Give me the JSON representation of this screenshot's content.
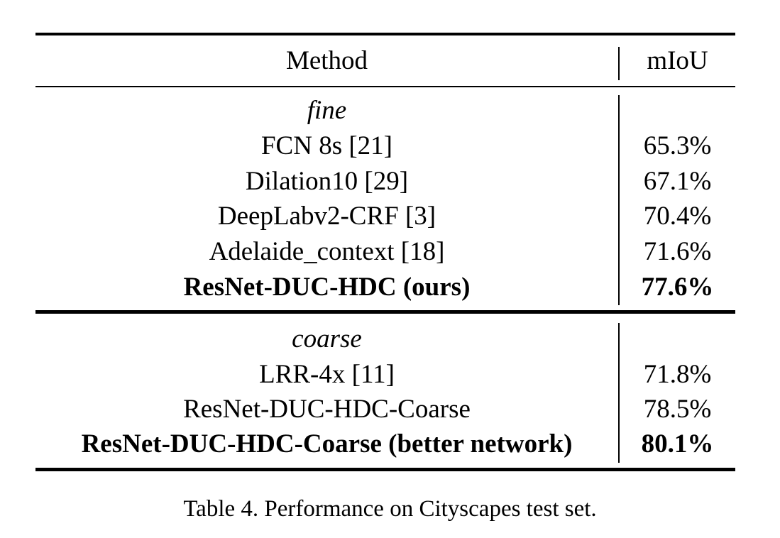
{
  "table": {
    "headers": {
      "method": "Method",
      "miou": "mIoU"
    },
    "sections": [
      {
        "label": "fine",
        "rows": [
          {
            "method": "FCN 8s [21]",
            "miou": "65.3%",
            "bold": false
          },
          {
            "method": "Dilation10 [29]",
            "miou": "67.1%",
            "bold": false
          },
          {
            "method": "DeepLabv2-CRF [3]",
            "miou": "70.4%",
            "bold": false
          },
          {
            "method": "Adelaide_context [18]",
            "miou": "71.6%",
            "bold": false
          },
          {
            "method": "ResNet-DUC-HDC (ours)",
            "miou": "77.6%",
            "bold": true
          }
        ]
      },
      {
        "label": "coarse",
        "rows": [
          {
            "method": "LRR-4x [11]",
            "miou": "71.8%",
            "bold": false
          },
          {
            "method": "ResNet-DUC-HDC-Coarse",
            "miou": "78.5%",
            "bold": false
          },
          {
            "method": "ResNet-DUC-HDC-Coarse (better network)",
            "miou": "80.1%",
            "bold": true
          }
        ]
      }
    ]
  },
  "caption": "Table 4. Performance on Cityscapes test set."
}
